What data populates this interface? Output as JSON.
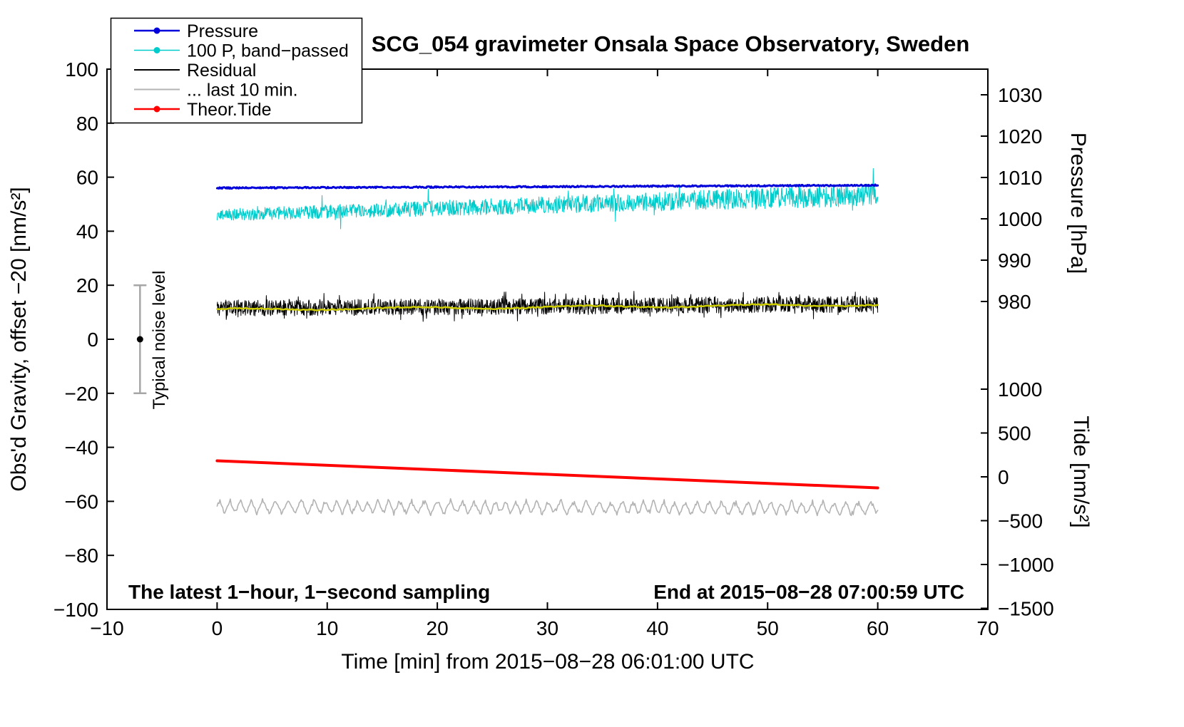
{
  "title": "SCG_054 gravimeter Onsala Space Observatory, Sweden",
  "annotations": {
    "sampling": "The latest 1−hour, 1−second sampling",
    "end": "End at 2015−08−28 07:00:59 UTC",
    "noise_label": "Typical noise level"
  },
  "legend": {
    "items": [
      {
        "label": "Pressure",
        "color": "#0000dd",
        "marker": "dot",
        "width": 2.5
      },
      {
        "label": "100 P, band−passed",
        "color": "#00cccc",
        "marker": "dot",
        "width": 1.5
      },
      {
        "label": "Residual",
        "color": "#000000",
        "marker": "line",
        "width": 2
      },
      {
        "label": "... last 10 min.",
        "color": "#b3b3b3",
        "marker": "line",
        "width": 2
      },
      {
        "label": "Theor.Tide",
        "color": "#ff0000",
        "marker": "dot",
        "width": 2.5
      }
    ]
  },
  "chart_data": {
    "type": "line",
    "title": "SCG_054 gravimeter Onsala Space Observatory, Sweden",
    "x_axis": {
      "label": "Time [min] from 2015−08−28 06:01:00 UTC",
      "range": [
        -10,
        70
      ],
      "values": [
        -10,
        0,
        10,
        20,
        30,
        40,
        50,
        60,
        70
      ],
      "labels": [
        "−10",
        "0",
        "10",
        "20",
        "30",
        "40",
        "50",
        "60",
        "70"
      ]
    },
    "y_left": {
      "label": "Obs'd Gravity, offset −20 [nm/s²]",
      "range": [
        -100,
        100
      ],
      "values": [
        100,
        80,
        60,
        40,
        20,
        0,
        -20,
        -40,
        -60,
        -80,
        -100
      ],
      "labels": [
        "100",
        "80",
        "60",
        "40",
        "20",
        "0",
        "−20",
        "−40",
        "−60",
        "−80",
        "−100"
      ]
    },
    "y_right_pressure": {
      "label": "Pressure [hPa]",
      "values": [
        1030,
        1020,
        1010,
        1000,
        990,
        980
      ],
      "labels": [
        "1030",
        "1020",
        "1010",
        "1000",
        "990",
        "980"
      ]
    },
    "y_right_tide": {
      "label": "Tide [nm/s²]",
      "values": [
        1000,
        500,
        0,
        -500,
        -1000,
        -1500
      ],
      "labels": [
        "1000",
        "500",
        "0",
        "−500",
        "−1000",
        "−1500"
      ]
    },
    "noise_bar": {
      "x": -7,
      "center": 0,
      "half": 20
    },
    "x_data_range": [
      0,
      60
    ],
    "series": [
      {
        "name": "Residual, last 10 min.",
        "legend_label": "... last 10 min.",
        "data_name": "series-last-10-min",
        "kind": "wavy",
        "color": "#b3b3b3",
        "width": 1.6,
        "x_range": [
          0,
          60
        ],
        "start": -62,
        "end": -62.5,
        "amp": 2.0,
        "points": 700,
        "units": "gravity nm/s² (offset −20)"
      },
      {
        "name": "100 P, band−passed",
        "data_name": "series-band-passed",
        "kind": "spiky",
        "color": "#00cccc",
        "width": 1,
        "x_range": [
          0,
          60
        ],
        "start": 46,
        "end": 53.5,
        "amp_start": 2.2,
        "amp_end": 4.2,
        "spike_prob": 0.018,
        "spike_scale": 2.3,
        "points": 1600,
        "units": "gravity nm/s² (offset −20)"
      },
      {
        "name": "Pressure",
        "data_name": "series-pressure",
        "kind": "flat",
        "color": "#0000dd",
        "width": 3,
        "x_range": [
          0,
          60
        ],
        "start": 56,
        "end": 57,
        "amp": 0.25,
        "points": 800,
        "native_units": "hPa",
        "native_start": 1007.4,
        "native_end": 1008.0
      },
      {
        "name": "Residual",
        "data_name": "series-residual",
        "kind": "hash",
        "color": "#000000",
        "width": 1,
        "x_range": [
          0,
          60
        ],
        "start": 11.5,
        "end": 13,
        "amp": 3.0,
        "points": 1800,
        "units": "gravity nm/s² (offset −20)"
      },
      {
        "name": "Residual smoothed",
        "data_name": "series-residual-smoothed",
        "kind": "smooth",
        "color": "#cccc00",
        "width": 2.5,
        "x_range": [
          0,
          60
        ],
        "start": 11,
        "end": 12.8,
        "amp": 0.7,
        "points": 300,
        "units": "gravity nm/s² (offset −20)"
      },
      {
        "name": "Theor.Tide",
        "data_name": "series-theor-tide",
        "kind": "line",
        "color": "#ff0000",
        "width": 4,
        "x_range": [
          0,
          60
        ],
        "start": -45,
        "end": -55,
        "points": 2,
        "native_units": "tide nm/s²",
        "native_start": 180,
        "native_end": -126
      }
    ]
  }
}
